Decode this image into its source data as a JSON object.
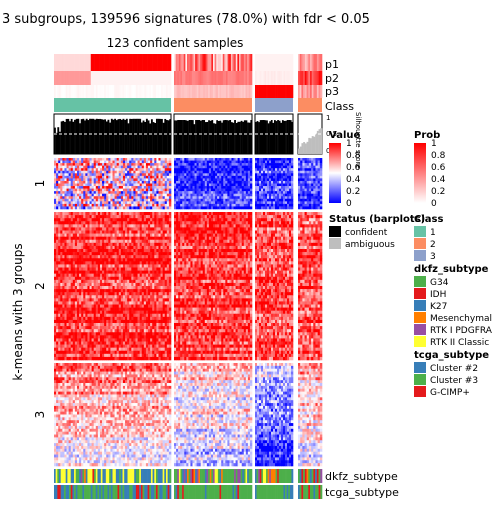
{
  "chart_data": {
    "type": "heatmap",
    "title": "3 subgroups, 139596 signatures (78.0%) with fdr < 0.05",
    "subtitle": "123 confident samples",
    "ylabel": "k-means with 3 groups",
    "row_groups": [
      "1",
      "2",
      "3"
    ],
    "column_groups": [
      "1",
      "2",
      "3"
    ],
    "top_annotations": [
      "p1",
      "p2",
      "p3",
      "Class"
    ],
    "silhouette_label": "Silhouette score",
    "silhouette_ticks": [
      "1",
      "0.5",
      "0"
    ],
    "bottom_annotations": [
      "dkfz_subtype",
      "tcga_subtype"
    ],
    "legends": {
      "value": {
        "title": "Value",
        "ticks": [
          "1",
          "0.8",
          "0.6",
          "0.4",
          "0.2",
          "0"
        ],
        "colors": {
          "low": "#0000ff",
          "mid": "#ffffff",
          "high": "#ff0000"
        }
      },
      "prob": {
        "title": "Prob",
        "ticks": [
          "1",
          "0.8",
          "0.6",
          "0.4",
          "0.2",
          "0"
        ],
        "colors": {
          "low": "#ffffff",
          "high": "#ff0000"
        }
      },
      "status": {
        "title": "Status (barplots)",
        "items": [
          {
            "label": "confident",
            "color": "#000000"
          },
          {
            "label": "ambiguous",
            "color": "#bebebe"
          }
        ]
      },
      "class": {
        "title": "Class",
        "items": [
          {
            "label": "1",
            "color": "#66c2a5"
          },
          {
            "label": "2",
            "color": "#fc8d62"
          },
          {
            "label": "3",
            "color": "#8da0cb"
          }
        ]
      },
      "dkfz_subtype": {
        "title": "dkfz_subtype",
        "items": [
          {
            "label": "G34",
            "color": "#4daf4a"
          },
          {
            "label": "IDH",
            "color": "#e41a1c"
          },
          {
            "label": "K27",
            "color": "#377eb8"
          },
          {
            "label": "Mesenchymal",
            "color": "#ff7f00"
          },
          {
            "label": "RTK I PDGFRA",
            "color": "#984ea3"
          },
          {
            "label": "RTK II Classic",
            "color": "#ffff33"
          }
        ]
      },
      "tcga_subtype": {
        "title": "tcga_subtype",
        "items": [
          {
            "label": "Cluster #2",
            "color": "#377eb8"
          },
          {
            "label": "Cluster #3",
            "color": "#4daf4a"
          },
          {
            "label": "G-CIMP+",
            "color": "#e41a1c"
          }
        ]
      }
    }
  }
}
